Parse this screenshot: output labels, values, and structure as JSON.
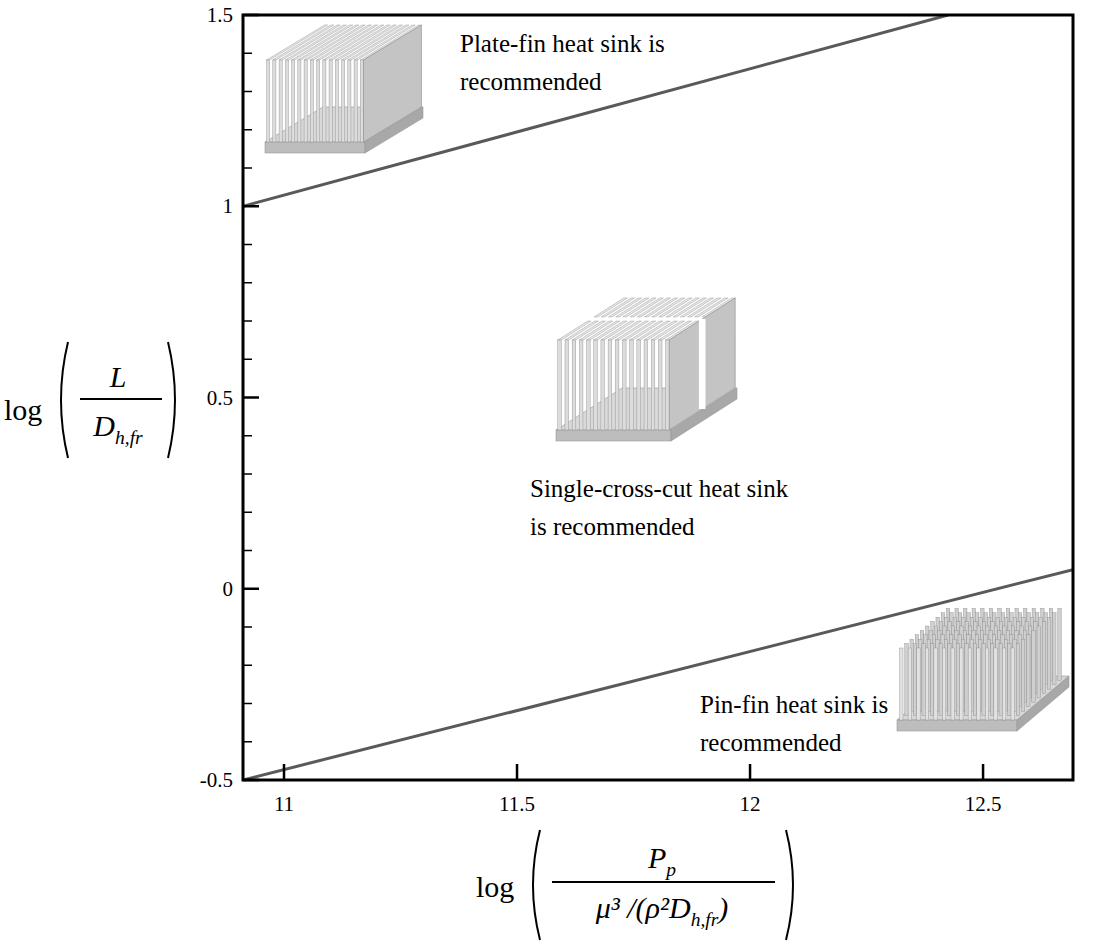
{
  "chart_data": {
    "type": "line",
    "x_label": {
      "function": "log",
      "numerator": "P",
      "numerator_subscript": "p",
      "denominator": "μ³ /(ρ²D",
      "denominator_subscript": "h,fr",
      "denominator_suffix": ")"
    },
    "y_label": {
      "function": "log",
      "numerator": "L",
      "denominator": "D",
      "denominator_subscript": "h,fr"
    },
    "xlim": [
      10.912,
      12.693
    ],
    "xticks": [
      11,
      11.5,
      12,
      12.5
    ],
    "ylim": [
      -0.5,
      1.5
    ],
    "yticks": [
      -0.5,
      0,
      0.5,
      1,
      1.5
    ],
    "grid": false,
    "series": [
      {
        "x": [
          10.912,
          12.425
        ],
        "values": [
          1.0,
          1.5
        ],
        "color": "#595959",
        "line_style": "solid"
      },
      {
        "x": [
          10.912,
          12.693
        ],
        "values": [
          -0.5,
          0.05
        ],
        "color": "#595959",
        "line_style": "solid"
      }
    ],
    "annotations": [
      {
        "lines": [
          "Plate-fin heat sink is",
          "recommended"
        ]
      },
      {
        "lines": [
          "Single-cross-cut heat sink",
          "is recommended"
        ]
      },
      {
        "lines": [
          "Pin-fin heat sink is",
          "recommended"
        ]
      }
    ]
  }
}
